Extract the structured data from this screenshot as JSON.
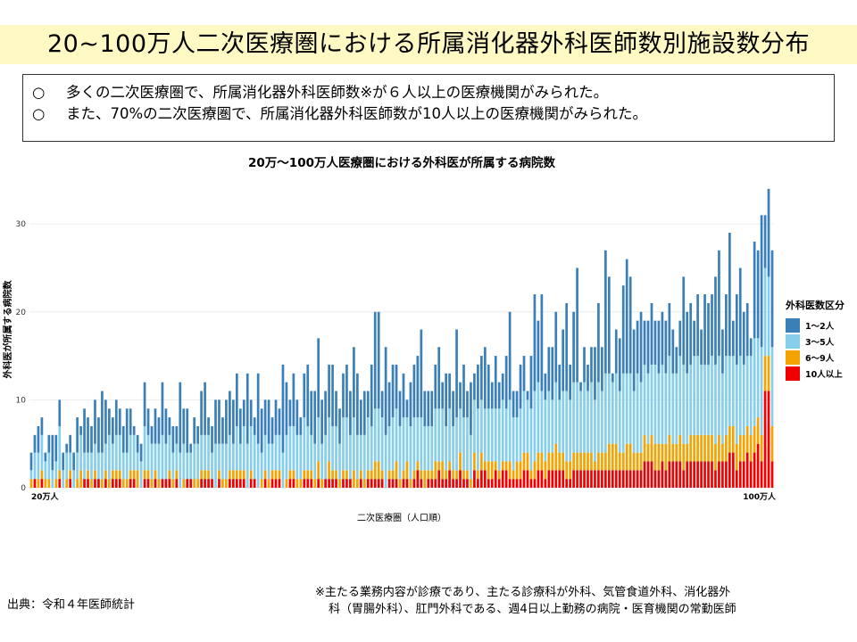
{
  "page_title": "20~100万人二次医療圏における所属消化器外科医師数別施設数分布",
  "summary": [
    {
      "mark": "○",
      "text": "多くの二次医療圏で、所属消化器外科医師数※が６人以上の医療機関がみられた。"
    },
    {
      "mark": "○",
      "text": "また、70%の二次医療圏で、所属消化器外科医師数が10人以上の医療機関がみられた。"
    }
  ],
  "source": "出典：令和４年医師統計",
  "footnote": {
    "line1": "※主たる業務内容が診療であり、主たる診療科が外科、気管食道外科、消化器外",
    "line2": "科（胃腸外科）、肛門外科である、週4日以上勤務の病院・医育機関の常勤医師"
  },
  "colors": {
    "s1": "#3b7fb8",
    "s2": "#87ceeb",
    "s3": "#f5a300",
    "s4": "#f00000"
  },
  "chart_data": {
    "type": "bar",
    "stacked": true,
    "title": "20万～100万人医療圏における外科医が所属する病院数",
    "xlabel": "二次医療圏（人口順）",
    "ylabel": "外科医が所属する病院数",
    "x_tick_labels": {
      "first": "20万人",
      "last": "100万人"
    },
    "yticks": [
      0,
      10,
      20,
      30
    ],
    "ylim": [
      0,
      36
    ],
    "legend_title": "外科医数区分",
    "legend_position": "right",
    "series": [
      {
        "name": "1～2人",
        "values": [
          2,
          2,
          3,
          2,
          1,
          2,
          4,
          3,
          3,
          2,
          1,
          2,
          2,
          4,
          1,
          5,
          4,
          3,
          5,
          4,
          7,
          5,
          3,
          3,
          4,
          3,
          3,
          5,
          3,
          1,
          2,
          2,
          5,
          3,
          2,
          4,
          3,
          6,
          4,
          2,
          3,
          2,
          8,
          4,
          5,
          1,
          3,
          2,
          5,
          6,
          2,
          3,
          5,
          5,
          3,
          5,
          5,
          5,
          6,
          4,
          3,
          8,
          3,
          2,
          8,
          5,
          4,
          5,
          3,
          4,
          3,
          10,
          6,
          3,
          6,
          4,
          2,
          5,
          7,
          5,
          6,
          9,
          5,
          5,
          6,
          7,
          4,
          4,
          5,
          6,
          5,
          8,
          7,
          4,
          5,
          3,
          7,
          11,
          11,
          3,
          10,
          5,
          6,
          5,
          4,
          5,
          2,
          5,
          6,
          7,
          10,
          4,
          4,
          4,
          5,
          7,
          3,
          6,
          4,
          4,
          10,
          3,
          6,
          3,
          6,
          3,
          5,
          5,
          7,
          5,
          3,
          6,
          3,
          3,
          6,
          10,
          3,
          3,
          5,
          4,
          1,
          6,
          11,
          7,
          11,
          3,
          5,
          6,
          8,
          4,
          7,
          10,
          4,
          8,
          13,
          1,
          4,
          3,
          4,
          6,
          9,
          5,
          14,
          11,
          1,
          5,
          6,
          10,
          13,
          11,
          7,
          6,
          8,
          5,
          6,
          7,
          5,
          6,
          6,
          6,
          6,
          5,
          3,
          4,
          10,
          7,
          7,
          4,
          7,
          4,
          8,
          7,
          7,
          10,
          12,
          5,
          7,
          14,
          4,
          8,
          10,
          6,
          6,
          2,
          11,
          10,
          15,
          6,
          10,
          11
        ]
      },
      {
        "name": "3～5人",
        "values": [
          1,
          3,
          3,
          4,
          2,
          3,
          2,
          2,
          5,
          2,
          3,
          2,
          2,
          3,
          4,
          3,
          2,
          3,
          3,
          3,
          3,
          3,
          5,
          3,
          4,
          4,
          3,
          3,
          4,
          4,
          2,
          3,
          5,
          4,
          4,
          3,
          4,
          5,
          4,
          4,
          3,
          3,
          4,
          4,
          3,
          3,
          4,
          4,
          4,
          4,
          4,
          3,
          5,
          3,
          4,
          4,
          4,
          3,
          5,
          3,
          5,
          5,
          5,
          5,
          5,
          3,
          4,
          4,
          3,
          4,
          4,
          4,
          5,
          5,
          5,
          5,
          5,
          6,
          5,
          4,
          4,
          5,
          4,
          5,
          5,
          5,
          5,
          4,
          6,
          6,
          5,
          6,
          5,
          4,
          5,
          6,
          5,
          6,
          6,
          6,
          6,
          5,
          6,
          6,
          6,
          6,
          5,
          6,
          6,
          5,
          6,
          5,
          5,
          5,
          6,
          6,
          6,
          5,
          6,
          5,
          6,
          5,
          6,
          6,
          5,
          6,
          7,
          6,
          6,
          6,
          6,
          6,
          7,
          7,
          6,
          7,
          6,
          5,
          6,
          7,
          6,
          7,
          8,
          8,
          7,
          7,
          7,
          6,
          7,
          6,
          7,
          8,
          7,
          8,
          8,
          7,
          8,
          7,
          8,
          7,
          8,
          7,
          9,
          8,
          7,
          8,
          7,
          9,
          8,
          8,
          7,
          9,
          8,
          8,
          8,
          8,
          9,
          8,
          9,
          8,
          9,
          8,
          8,
          9,
          9,
          8,
          8,
          9,
          9,
          8,
          8,
          8,
          9,
          9,
          9,
          8,
          9,
          8,
          8,
          9,
          9,
          8,
          8,
          9,
          10,
          9,
          10,
          10,
          9,
          9
        ]
      },
      {
        "name": "6～9人",
        "values": [
          1,
          0,
          1,
          1,
          1,
          1,
          0,
          1,
          1,
          0,
          1,
          1,
          0,
          1,
          2,
          0,
          1,
          1,
          1,
          0,
          1,
          1,
          1,
          1,
          1,
          1,
          1,
          1,
          1,
          1,
          2,
          0,
          1,
          1,
          1,
          1,
          1,
          0,
          0,
          1,
          1,
          1,
          0,
          1,
          0,
          0,
          1,
          1,
          1,
          1,
          1,
          0,
          0,
          1,
          1,
          1,
          1,
          1,
          1,
          1,
          1,
          0,
          1,
          0,
          0,
          1,
          1,
          1,
          1,
          1,
          1,
          0,
          1,
          1,
          1,
          1,
          1,
          1,
          1,
          1,
          1,
          2,
          1,
          0,
          2,
          1,
          1,
          1,
          1,
          1,
          0,
          2,
          1,
          1,
          1,
          1,
          1,
          2,
          2,
          1,
          0,
          1,
          1,
          2,
          1,
          1,
          2,
          1,
          1,
          1,
          1,
          2,
          1,
          1,
          2,
          1,
          2,
          1,
          1,
          1,
          1,
          2,
          1,
          1,
          1,
          2,
          1,
          2,
          1,
          2,
          2,
          1,
          1,
          1,
          1,
          2,
          1,
          2,
          2,
          2,
          2,
          1,
          2,
          2,
          2,
          2,
          2,
          2,
          3,
          2,
          2,
          2,
          2,
          2,
          2,
          2,
          2,
          2,
          2,
          1,
          2,
          2,
          2,
          3,
          3,
          3,
          2,
          2,
          3,
          3,
          2,
          2,
          2,
          3,
          2,
          3,
          3,
          3,
          2,
          3,
          3,
          2,
          2,
          3,
          3,
          2,
          3,
          3,
          3,
          3,
          3,
          3,
          3,
          3,
          3,
          2,
          3,
          3,
          3,
          3,
          3,
          3,
          3,
          3,
          3,
          3,
          3,
          4,
          4,
          4
        ]
      },
      {
        "name": "10人以上",
        "values": [
          0,
          1,
          0,
          1,
          0,
          0,
          0,
          0,
          1,
          0,
          0,
          1,
          0,
          0,
          0,
          1,
          1,
          0,
          1,
          1,
          0,
          1,
          0,
          1,
          1,
          1,
          0,
          0,
          1,
          1,
          0,
          0,
          1,
          1,
          0,
          1,
          0,
          1,
          1,
          1,
          0,
          1,
          0,
          0,
          1,
          1,
          0,
          0,
          1,
          1,
          1,
          1,
          0,
          1,
          0,
          0,
          1,
          1,
          1,
          1,
          1,
          0,
          1,
          1,
          0,
          0,
          1,
          0,
          1,
          1,
          1,
          0,
          0,
          1,
          1,
          0,
          0,
          1,
          1,
          1,
          0,
          1,
          0,
          1,
          1,
          1,
          1,
          0,
          1,
          1,
          1,
          0,
          0,
          1,
          0,
          1,
          1,
          1,
          1,
          1,
          0,
          1,
          1,
          1,
          0,
          1,
          1,
          0,
          1,
          2,
          1,
          0,
          1,
          1,
          1,
          2,
          1,
          1,
          2,
          1,
          1,
          2,
          1,
          1,
          0,
          2,
          1,
          2,
          2,
          1,
          1,
          2,
          1,
          2,
          2,
          1,
          1,
          1,
          1,
          2,
          2,
          1,
          1,
          2,
          2,
          1,
          2,
          2,
          2,
          2,
          2,
          1,
          1,
          2,
          2,
          2,
          2,
          2,
          2,
          2,
          2,
          2,
          2,
          2,
          2,
          2,
          2,
          2,
          2,
          2,
          2,
          2,
          2,
          3,
          3,
          3,
          2,
          2,
          3,
          2,
          3,
          3,
          3,
          3,
          2,
          3,
          3,
          3,
          3,
          3,
          3,
          3,
          3,
          2,
          3,
          3,
          3,
          4,
          4,
          2,
          3,
          3,
          4,
          3,
          4,
          5,
          3,
          11,
          11,
          3
        ]
      }
    ]
  }
}
